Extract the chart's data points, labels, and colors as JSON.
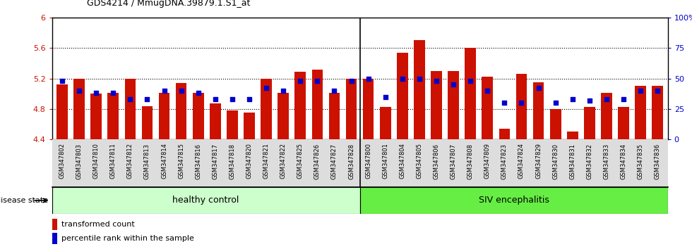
{
  "title": "GDS4214 / MmugDNA.39879.1.S1_at",
  "samples": [
    "GSM347802",
    "GSM347803",
    "GSM347810",
    "GSM347811",
    "GSM347812",
    "GSM347813",
    "GSM347814",
    "GSM347815",
    "GSM347816",
    "GSM347817",
    "GSM347818",
    "GSM347820",
    "GSM347821",
    "GSM347822",
    "GSM347825",
    "GSM347826",
    "GSM347827",
    "GSM347828",
    "GSM347800",
    "GSM347801",
    "GSM347804",
    "GSM347805",
    "GSM347806",
    "GSM347807",
    "GSM347808",
    "GSM347809",
    "GSM347823",
    "GSM347824",
    "GSM347829",
    "GSM347830",
    "GSM347831",
    "GSM347832",
    "GSM347833",
    "GSM347834",
    "GSM347835",
    "GSM347836"
  ],
  "bar_values": [
    5.12,
    5.2,
    5.0,
    5.01,
    5.2,
    4.84,
    5.01,
    5.14,
    5.01,
    4.87,
    4.78,
    4.75,
    5.2,
    5.01,
    5.29,
    5.32,
    5.01,
    5.2,
    5.2,
    4.83,
    5.54,
    5.7,
    5.3,
    5.3,
    5.6,
    5.22,
    4.54,
    5.26,
    5.15,
    4.8,
    4.5,
    4.83,
    5.01,
    4.83,
    5.1,
    5.1
  ],
  "percentile_values": [
    48,
    40,
    38,
    38,
    33,
    33,
    40,
    40,
    38,
    33,
    33,
    33,
    42,
    40,
    48,
    48,
    40,
    48,
    50,
    35,
    50,
    50,
    48,
    45,
    48,
    40,
    30,
    30,
    42,
    30,
    33,
    32,
    33,
    33,
    40,
    40
  ],
  "ylim_left": [
    4.4,
    6.0
  ],
  "ylim_right": [
    0,
    100
  ],
  "yticks_left": [
    4.4,
    4.8,
    5.2,
    5.6,
    6.0
  ],
  "yticks_right": [
    0,
    25,
    50,
    75,
    100
  ],
  "ytick_labels_left": [
    "4.4",
    "4.8",
    "5.2",
    "5.6",
    "6"
  ],
  "ytick_labels_right": [
    "0",
    "25",
    "50",
    "75",
    "100%"
  ],
  "bar_color": "#cc1100",
  "dot_color": "#0000cc",
  "healthy_count": 18,
  "healthy_label": "healthy control",
  "siv_label": "SIV encephalitis",
  "healthy_bg": "#ccffcc",
  "siv_bg": "#66ee44",
  "xtick_bg": "#dddddd",
  "disease_state_label": "disease state",
  "legend_bar_label": "transformed count",
  "legend_dot_label": "percentile rank within the sample",
  "base_value": 4.4
}
